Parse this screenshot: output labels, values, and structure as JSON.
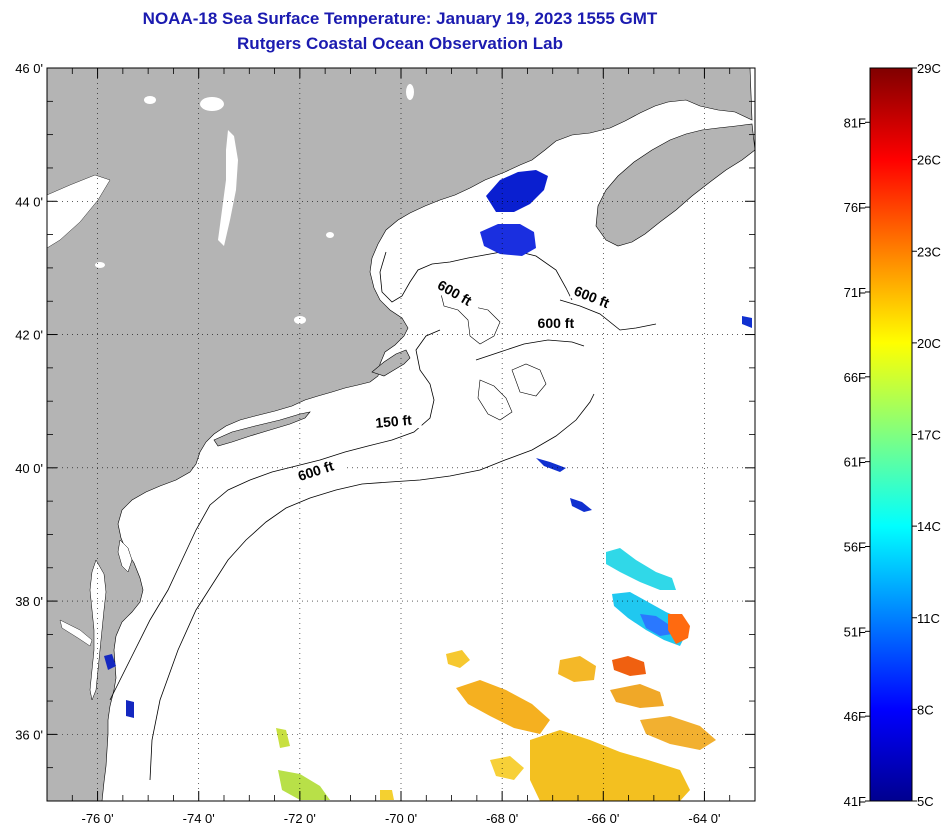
{
  "title": {
    "line1": "NOAA-18 Sea Surface Temperature:  January 19, 2023 1555 GMT",
    "line2": "Rutgers Coastal Ocean Observation Lab"
  },
  "map": {
    "lon_range": [
      -77,
      -63
    ],
    "lat_range": [
      35,
      46
    ],
    "land_color": "#b4b4b4",
    "ocean_color": "#ffffff",
    "lat_ticks": [
      {
        "value": 46,
        "label": "46 0'"
      },
      {
        "value": 44,
        "label": "44 0'"
      },
      {
        "value": 42,
        "label": "42 0'"
      },
      {
        "value": 40,
        "label": "40 0'"
      },
      {
        "value": 38,
        "label": "38 0'"
      },
      {
        "value": 36,
        "label": "36 0'"
      }
    ],
    "lon_ticks": [
      {
        "value": -76,
        "label": "-76 0'"
      },
      {
        "value": -74,
        "label": "-74 0'"
      },
      {
        "value": -72,
        "label": "-72 0'"
      },
      {
        "value": -70,
        "label": "-70 0'"
      },
      {
        "value": -68,
        "label": "-68 0'"
      },
      {
        "value": -66,
        "label": "-66 0'"
      },
      {
        "value": -64,
        "label": "-64 0'"
      }
    ],
    "contour_labels": [
      {
        "text": "600 ft",
        "lon": -69.3,
        "lat": 42.7,
        "rotate": 30
      },
      {
        "text": "600 ft",
        "lon": -66.6,
        "lat": 42.6,
        "rotate": 22
      },
      {
        "text": "600 ft",
        "lon": -67.3,
        "lat": 42.1,
        "rotate": 0
      },
      {
        "text": "150 ft",
        "lon": -70.5,
        "lat": 40.6,
        "rotate": -5
      },
      {
        "text": "600 ft",
        "lon": -72.0,
        "lat": 39.8,
        "rotate": -18
      }
    ]
  },
  "colorbar": {
    "min_c": 5,
    "max_c": 29,
    "celsius_labels": [
      {
        "value": 29,
        "label": "29C"
      },
      {
        "value": 26,
        "label": "26C"
      },
      {
        "value": 23,
        "label": "23C"
      },
      {
        "value": 20,
        "label": "20C"
      },
      {
        "value": 17,
        "label": "17C"
      },
      {
        "value": 14,
        "label": "14C"
      },
      {
        "value": 11,
        "label": "11C"
      },
      {
        "value": 8,
        "label": "8C"
      },
      {
        "value": 5,
        "label": "5C"
      }
    ],
    "fahrenheit_labels": [
      {
        "value": 81,
        "label": "81F"
      },
      {
        "value": 76,
        "label": "76F"
      },
      {
        "value": 71,
        "label": "71F"
      },
      {
        "value": 66,
        "label": "66F"
      },
      {
        "value": 61,
        "label": "61F"
      },
      {
        "value": 56,
        "label": "56F"
      },
      {
        "value": 51,
        "label": "51F"
      },
      {
        "value": 46,
        "label": "46F"
      },
      {
        "value": 41,
        "label": "41F"
      }
    ],
    "stops": [
      "#00008f",
      "#0000ff",
      "#0080ff",
      "#00ffff",
      "#80ff80",
      "#ffff00",
      "#ff8000",
      "#ff0000",
      "#800000"
    ]
  }
}
